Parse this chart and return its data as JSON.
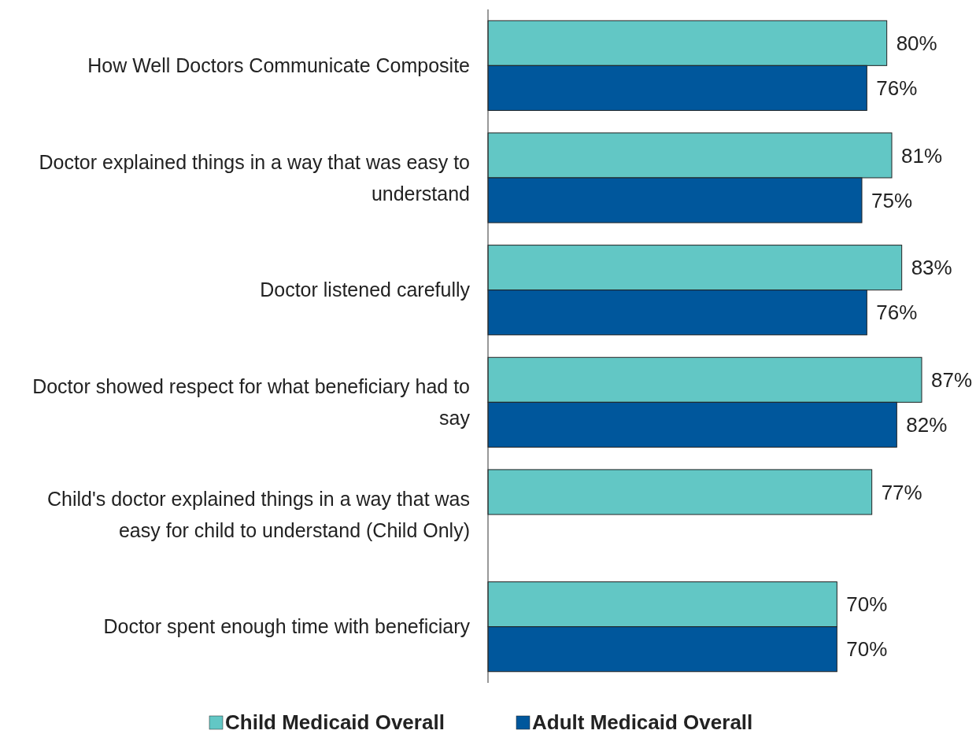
{
  "chart_data": {
    "type": "bar",
    "orientation": "horizontal",
    "categories": [
      "How Well Doctors Communicate Composite",
      "Doctor explained things in a way that was easy to understand",
      "Doctor listened carefully",
      "Doctor showed respect for what beneficiary had to say",
      "Child's doctor explained things in a way that was easy for child to understand (Child Only)",
      "Doctor spent enough time with beneficiary"
    ],
    "series": [
      {
        "name": "Child Medicaid Overall",
        "color": "#62c7c5",
        "values": [
          80,
          81,
          83,
          87,
          77,
          70
        ],
        "value_labels": [
          "80%",
          "81%",
          "83%",
          "87%",
          "77%",
          "70%"
        ]
      },
      {
        "name": "Adult Medicaid Overall",
        "color": "#00579c",
        "values": [
          76,
          75,
          76,
          82,
          null,
          70
        ],
        "value_labels": [
          "76%",
          "75%",
          "76%",
          "82%",
          null,
          "70%"
        ]
      }
    ],
    "legend": "bottom"
  }
}
